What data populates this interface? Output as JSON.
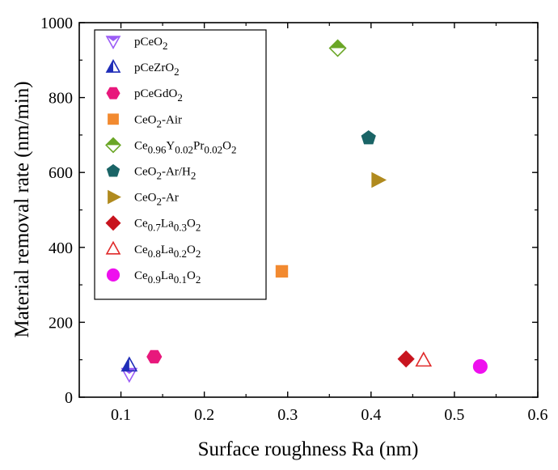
{
  "chart_data": {
    "type": "scatter",
    "title": "",
    "xlabel": "Surface roughness Ra (nm)",
    "ylabel": "Material removal rate (nm/min)",
    "xlim": [
      0.05,
      0.6
    ],
    "ylim": [
      0,
      1000
    ],
    "xticks": [
      "0.1",
      "0.2",
      "0.3",
      "0.4",
      "0.5",
      "0.6"
    ],
    "yticks": [
      "0",
      "200",
      "400",
      "600",
      "800",
      "1000"
    ],
    "grid": false,
    "legend_position": "top-left",
    "series": [
      {
        "name": "pCeO2",
        "label_parts": [
          [
            "pCeO",
            ""
          ],
          [
            "2",
            "sub"
          ]
        ],
        "marker": "triangle-down-split",
        "color": "#9b5cf6",
        "points": [
          {
            "x": 0.11,
            "y": 62
          }
        ]
      },
      {
        "name": "pCeZrO2",
        "label_parts": [
          [
            "pCeZrO",
            ""
          ],
          [
            "2",
            "sub"
          ]
        ],
        "marker": "triangle-up-split",
        "color": "#1f2db8",
        "points": [
          {
            "x": 0.11,
            "y": 85
          }
        ]
      },
      {
        "name": "pCeGdO2",
        "label_parts": [
          [
            "pCeGdO",
            ""
          ],
          [
            "2",
            "sub"
          ]
        ],
        "marker": "hexagon",
        "color": "#e8187c",
        "points": [
          {
            "x": 0.14,
            "y": 108
          }
        ]
      },
      {
        "name": "CeO2-Air",
        "label_parts": [
          [
            "CeO",
            ""
          ],
          [
            "2",
            "sub"
          ],
          [
            "-Air",
            ""
          ]
        ],
        "marker": "square",
        "color": "#f28a30",
        "points": [
          {
            "x": 0.293,
            "y": 336
          }
        ]
      },
      {
        "name": "Ce0.96Y0.02Pr0.02O2",
        "label_parts": [
          [
            "Ce",
            ""
          ],
          [
            "0.96",
            "sub"
          ],
          [
            "Y",
            ""
          ],
          [
            "0.02",
            "sub"
          ],
          [
            "Pr",
            ""
          ],
          [
            "0.02",
            "sub"
          ],
          [
            "O",
            ""
          ],
          [
            "2",
            "sub"
          ]
        ],
        "marker": "diamond-split",
        "color": "#6aa626",
        "points": [
          {
            "x": 0.36,
            "y": 932
          }
        ]
      },
      {
        "name": "CeO2-Ar/H2",
        "label_parts": [
          [
            "CeO",
            ""
          ],
          [
            "2",
            "sub"
          ],
          [
            "-Ar/H",
            ""
          ],
          [
            "2",
            "sub"
          ]
        ],
        "marker": "pentagon",
        "color": "#1a6466",
        "points": [
          {
            "x": 0.397,
            "y": 692
          }
        ]
      },
      {
        "name": "CeO2-Ar",
        "label_parts": [
          [
            "CeO",
            ""
          ],
          [
            "2",
            "sub"
          ],
          [
            "-Ar",
            ""
          ]
        ],
        "marker": "triangle-right",
        "color": "#b08a1e",
        "points": [
          {
            "x": 0.408,
            "y": 580
          }
        ]
      },
      {
        "name": "Ce0.7La0.3O2",
        "label_parts": [
          [
            "Ce",
            ""
          ],
          [
            "0.7",
            "sub"
          ],
          [
            "La",
            ""
          ],
          [
            "0.3",
            "sub"
          ],
          [
            "O",
            ""
          ],
          [
            "2",
            "sub"
          ]
        ],
        "marker": "diamond",
        "color": "#c8141e",
        "points": [
          {
            "x": 0.442,
            "y": 102
          }
        ]
      },
      {
        "name": "Ce0.8La0.2O2",
        "label_parts": [
          [
            "Ce",
            ""
          ],
          [
            "0.8",
            "sub"
          ],
          [
            "La",
            ""
          ],
          [
            "0.2",
            "sub"
          ],
          [
            "O",
            ""
          ],
          [
            "2",
            "sub"
          ]
        ],
        "marker": "triangle-up-open",
        "color": "#e02a2a",
        "points": [
          {
            "x": 0.463,
            "y": 98
          }
        ]
      },
      {
        "name": "Ce0.9La0.1O2",
        "label_parts": [
          [
            "Ce",
            ""
          ],
          [
            "0.9",
            "sub"
          ],
          [
            "La",
            ""
          ],
          [
            "0.1",
            "sub"
          ],
          [
            "O",
            ""
          ],
          [
            "2",
            "sub"
          ]
        ],
        "marker": "circle",
        "color": "#ee10ee",
        "points": [
          {
            "x": 0.531,
            "y": 82
          }
        ]
      }
    ]
  }
}
